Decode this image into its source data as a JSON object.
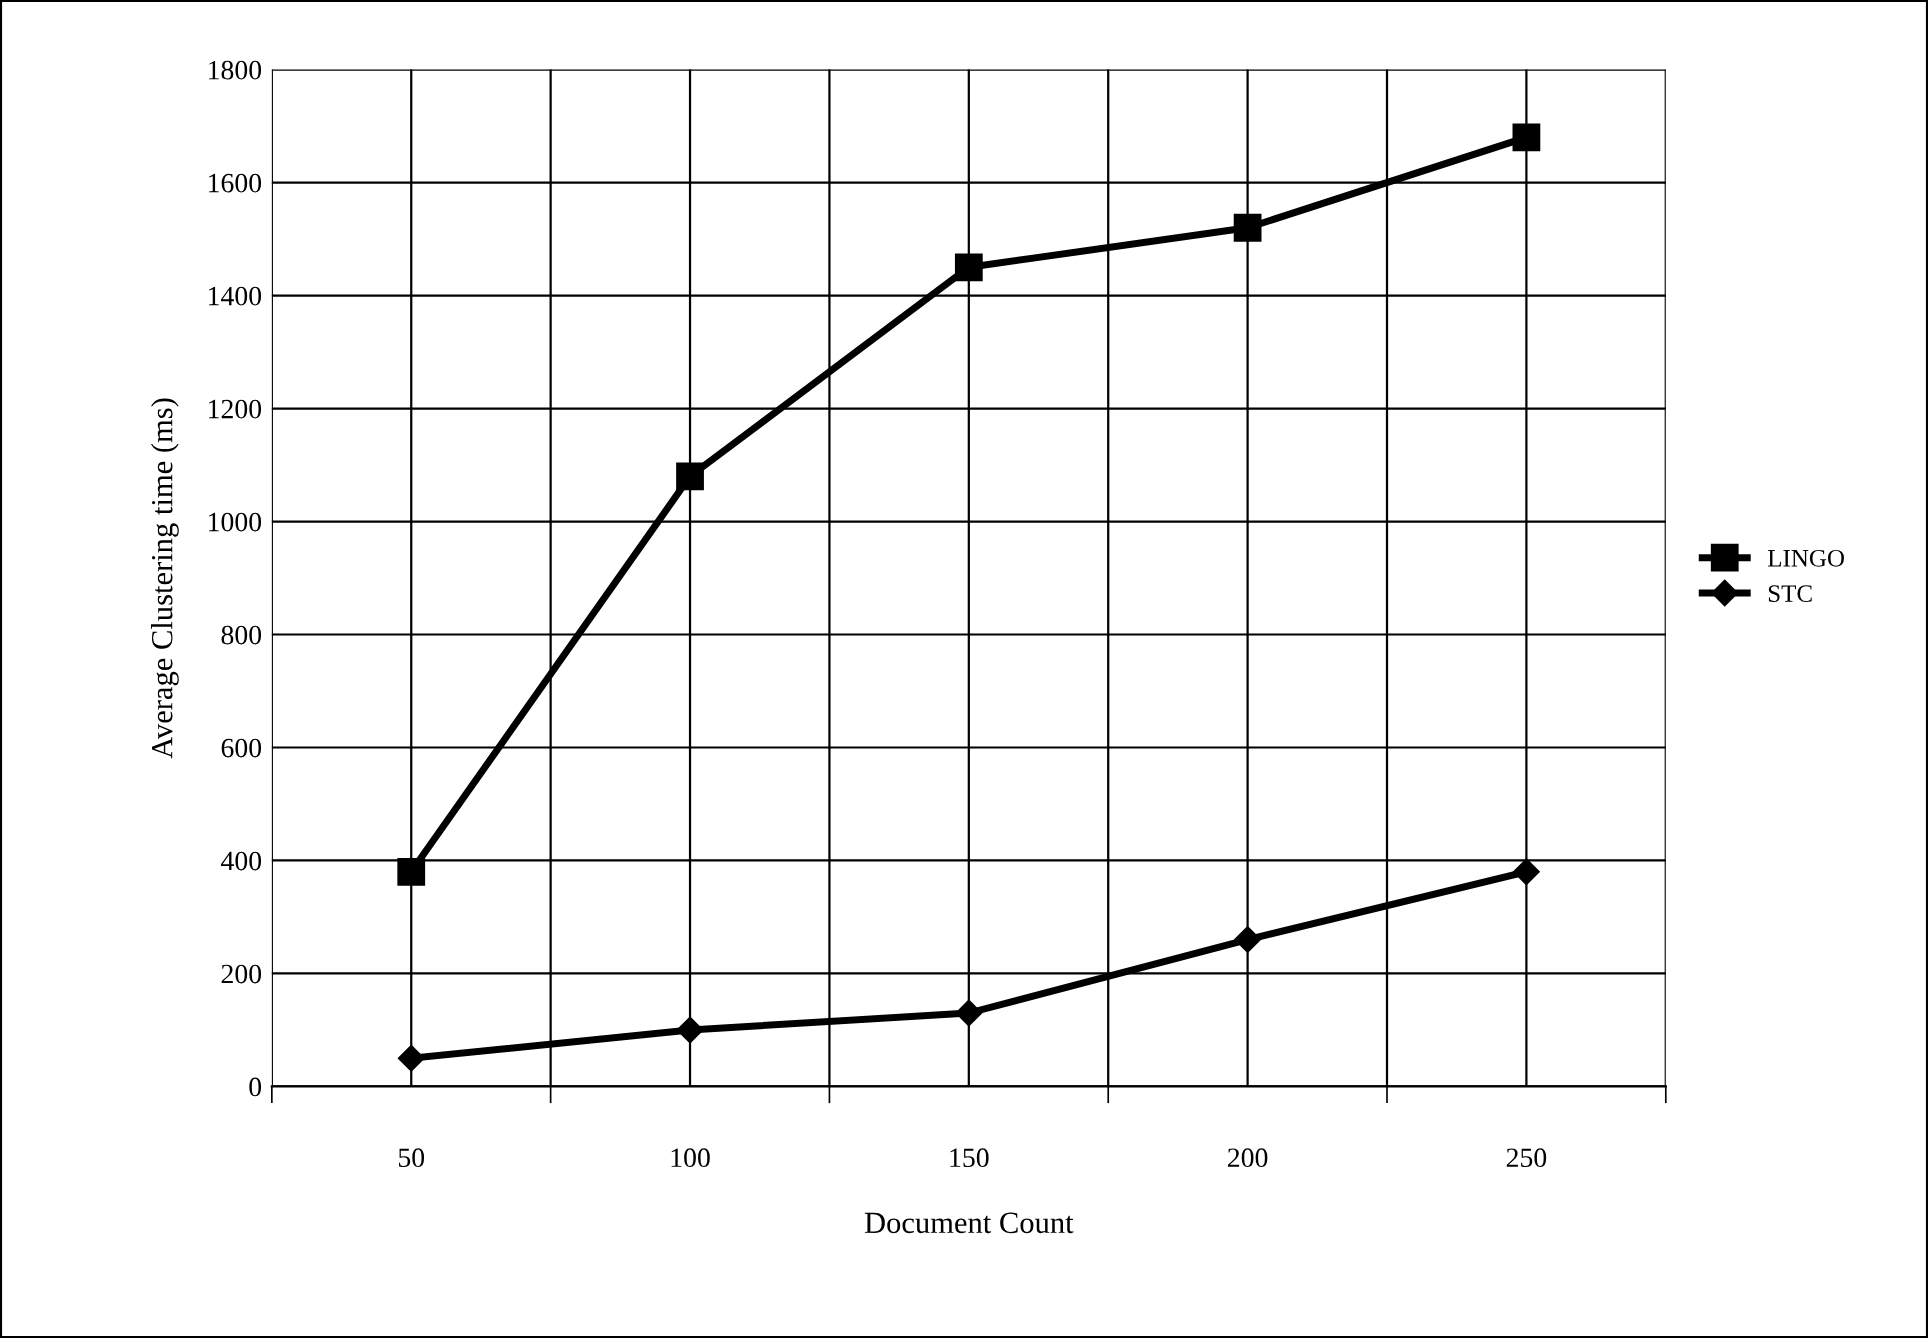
{
  "chart_data": {
    "type": "line",
    "xlabel": "Document Count",
    "ylabel": "Average Clustering time (ms)",
    "categories": [
      "50",
      "100",
      "150",
      "200",
      "250"
    ],
    "series": [
      {
        "name": "LINGO",
        "color": "#000000",
        "marker": "square",
        "values": [
          380,
          1080,
          1450,
          1520,
          1680
        ]
      },
      {
        "name": "STC",
        "color": "#000000",
        "marker": "diamond",
        "values": [
          50,
          100,
          130,
          260,
          380
        ]
      }
    ],
    "ylim": [
      0,
      1800
    ],
    "yticks": [
      0,
      200,
      400,
      600,
      800,
      1000,
      1200,
      1400,
      1600,
      1800
    ],
    "grid": true,
    "legend": "right",
    "line_style": "solid"
  }
}
